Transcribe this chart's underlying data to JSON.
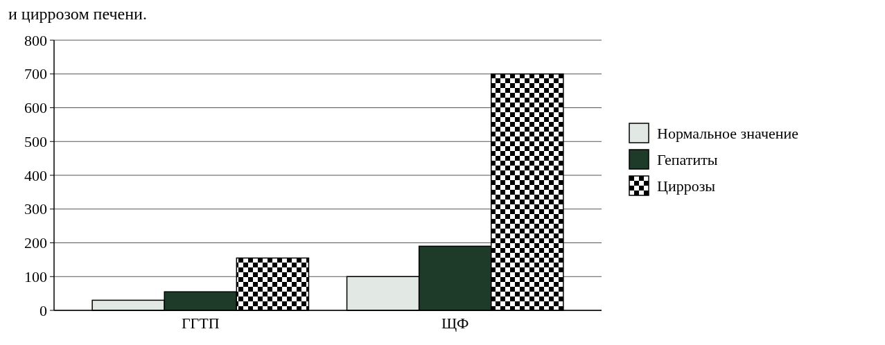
{
  "chart_data": {
    "type": "bar",
    "annotations": [
      "и циррозом печени."
    ],
    "categories": [
      "ГГТП",
      "ЩФ"
    ],
    "series": [
      {
        "name": "Нормальное значение",
        "color": "#e2e9e4",
        "values": [
          30,
          100
        ]
      },
      {
        "name": "Гепатиты",
        "color": "#1e3a28",
        "values": [
          55,
          190
        ]
      },
      {
        "name": "Циррозы",
        "color": "#000000",
        "values": [
          155,
          700
        ]
      }
    ],
    "ylim": [
      0,
      800
    ],
    "yticks": [
      0,
      100,
      200,
      300,
      400,
      500,
      600,
      700,
      800
    ],
    "grid": "y",
    "legend": "right"
  }
}
